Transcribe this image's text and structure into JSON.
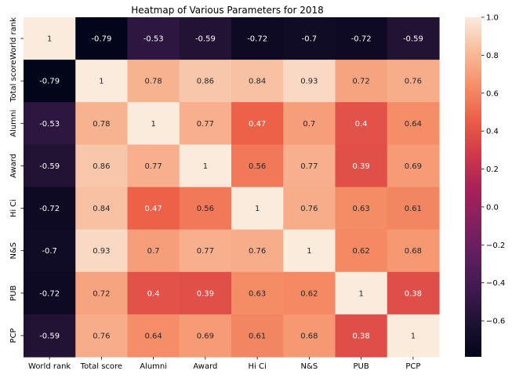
{
  "chart_data": {
    "type": "heatmap",
    "title": "Heatmap of Various Parameters for 2018",
    "xlabel": "",
    "ylabel": "",
    "x_categories": [
      "World rank",
      "Total score",
      "Alumni",
      "Award",
      "Hi Ci",
      "N&S",
      "PUB",
      "PCP"
    ],
    "y_categories": [
      "World rank",
      "Total score",
      "Alumni",
      "Award",
      "Hi Ci",
      "N&S",
      "PUB",
      "PCP"
    ],
    "values": [
      [
        1,
        -0.79,
        -0.53,
        -0.59,
        -0.72,
        -0.7,
        -0.72,
        -0.59
      ],
      [
        -0.79,
        1,
        0.78,
        0.86,
        0.84,
        0.93,
        0.72,
        0.76
      ],
      [
        -0.53,
        0.78,
        1,
        0.77,
        0.47,
        0.7,
        0.4,
        0.64
      ],
      [
        -0.59,
        0.86,
        0.77,
        1,
        0.56,
        0.77,
        0.39,
        0.69
      ],
      [
        -0.72,
        0.84,
        0.47,
        0.56,
        1,
        0.76,
        0.63,
        0.61
      ],
      [
        -0.7,
        0.93,
        0.7,
        0.77,
        0.76,
        1,
        0.62,
        0.68
      ],
      [
        -0.72,
        0.72,
        0.4,
        0.39,
        0.63,
        0.62,
        1,
        0.38
      ],
      [
        -0.59,
        0.76,
        0.64,
        0.69,
        0.61,
        0.68,
        0.38,
        1
      ]
    ],
    "annotations": [
      [
        "1",
        "-0.79",
        "-0.53",
        "-0.59",
        "-0.72",
        "-0.7",
        "-0.72",
        "-0.59"
      ],
      [
        "-0.79",
        "1",
        "0.78",
        "0.86",
        "0.84",
        "0.93",
        "0.72",
        "0.76"
      ],
      [
        "-0.53",
        "0.78",
        "1",
        "0.77",
        "0.47",
        "0.7",
        "0.4",
        "0.64"
      ],
      [
        "-0.59",
        "0.86",
        "0.77",
        "1",
        "0.56",
        "0.77",
        "0.39",
        "0.69"
      ],
      [
        "-0.72",
        "0.84",
        "0.47",
        "0.56",
        "1",
        "0.76",
        "0.63",
        "0.61"
      ],
      [
        "-0.7",
        "0.93",
        "0.7",
        "0.77",
        "0.76",
        "1",
        "0.62",
        "0.68"
      ],
      [
        "-0.72",
        "0.72",
        "0.4",
        "0.39",
        "0.63",
        "0.62",
        "1",
        "0.38"
      ],
      [
        "-0.59",
        "0.76",
        "0.64",
        "0.69",
        "0.61",
        "0.68",
        "0.38",
        "1"
      ]
    ],
    "colorbar": {
      "vmin": -0.79,
      "vmax": 1,
      "ticks": [
        1.0,
        0.8,
        0.6,
        0.4,
        0.2,
        0.0,
        -0.2,
        -0.4,
        -0.6
      ],
      "tick_labels": [
        "1.0",
        "0.8",
        "0.6",
        "0.4",
        "0.2",
        "0.0",
        "−0.2",
        "−0.4",
        "−0.6"
      ]
    },
    "colormap": "rocket",
    "colormap_stops": [
      {
        "v": 0.0,
        "color": "#03051a"
      },
      {
        "v": 0.1,
        "color": "#1e1231"
      },
      {
        "v": 0.2,
        "color": "#3f1a4f"
      },
      {
        "v": 0.3,
        "color": "#5e1f5f"
      },
      {
        "v": 0.4,
        "color": "#85215f"
      },
      {
        "v": 0.5,
        "color": "#ab2158"
      },
      {
        "v": 0.6,
        "color": "#d13a4a"
      },
      {
        "v": 0.7,
        "color": "#ec5f47"
      },
      {
        "v": 0.8,
        "color": "#f58f68"
      },
      {
        "v": 0.9,
        "color": "#f8bc9c"
      },
      {
        "v": 1.0,
        "color": "#faebdd"
      }
    ],
    "grid": false,
    "legend": "colorbar-right"
  }
}
